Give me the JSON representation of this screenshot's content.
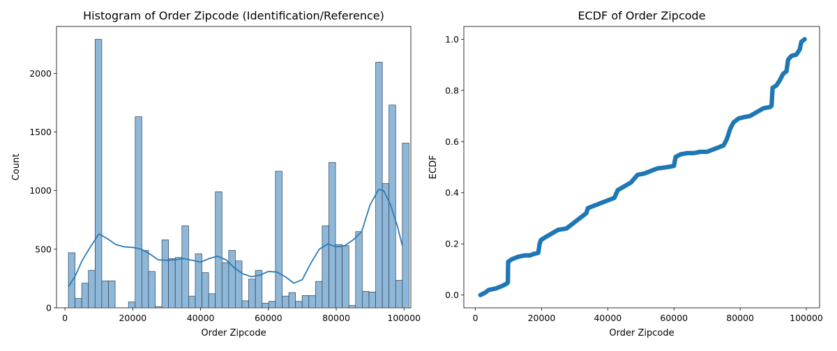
{
  "chart_data": [
    {
      "type": "bar",
      "title": "Histogram of Order Zipcode (Identification/Reference)",
      "xlabel": "Order Zipcode",
      "ylabel": "Count",
      "xlim": [
        -2500,
        102000
      ],
      "ylim": [
        0,
        2400
      ],
      "x_ticks": [
        0,
        20000,
        40000,
        60000,
        80000,
        100000
      ],
      "y_ticks": [
        0,
        500,
        1000,
        1500,
        2000
      ],
      "bin_start": 1000,
      "bin_width": 1970,
      "bar_color": "#8fb8d8",
      "bar_edge": "#2a3f55",
      "kde_color": "#2a7ab7",
      "values": [
        470,
        80,
        210,
        320,
        2290,
        230,
        230,
        0,
        0,
        50,
        1630,
        490,
        310,
        10,
        580,
        420,
        430,
        700,
        100,
        460,
        300,
        120,
        990,
        385,
        490,
        400,
        60,
        245,
        320,
        40,
        55,
        1165,
        100,
        130,
        55,
        105,
        105,
        225,
        700,
        1240,
        540,
        530,
        20,
        650,
        140,
        135,
        2095,
        1060,
        1730,
        235,
        1405
      ],
      "kde": [
        [
          1000,
          180
        ],
        [
          3000,
          270
        ],
        [
          5000,
          400
        ],
        [
          7500,
          520
        ],
        [
          10000,
          630
        ],
        [
          12500,
          590
        ],
        [
          15000,
          540
        ],
        [
          17500,
          520
        ],
        [
          20000,
          515
        ],
        [
          22500,
          500
        ],
        [
          25000,
          460
        ],
        [
          27500,
          410
        ],
        [
          30000,
          405
        ],
        [
          32500,
          410
        ],
        [
          35000,
          420
        ],
        [
          37500,
          405
        ],
        [
          40000,
          390
        ],
        [
          42500,
          420
        ],
        [
          45000,
          440
        ],
        [
          47500,
          410
        ],
        [
          50000,
          340
        ],
        [
          52500,
          290
        ],
        [
          55000,
          265
        ],
        [
          57500,
          280
        ],
        [
          60000,
          310
        ],
        [
          62500,
          305
        ],
        [
          65000,
          265
        ],
        [
          67500,
          210
        ],
        [
          70000,
          240
        ],
        [
          72500,
          380
        ],
        [
          75000,
          500
        ],
        [
          77500,
          545
        ],
        [
          80000,
          520
        ],
        [
          82500,
          530
        ],
        [
          85000,
          580
        ],
        [
          87500,
          650
        ],
        [
          90000,
          880
        ],
        [
          92500,
          1010
        ],
        [
          94000,
          1000
        ],
        [
          96000,
          880
        ],
        [
          98000,
          700
        ],
        [
          99500,
          530
        ]
      ]
    },
    {
      "type": "scatter",
      "title": "ECDF of Order Zipcode",
      "xlabel": "Order Zipcode",
      "ylabel": "ECDF",
      "xlim": [
        -3500,
        104000
      ],
      "ylim": [
        -0.05,
        1.05
      ],
      "x_ticks": [
        0,
        20000,
        40000,
        60000,
        80000,
        100000
      ],
      "y_ticks": [
        0.0,
        0.2,
        0.4,
        0.6,
        0.8,
        1.0
      ],
      "y_tick_labels": [
        "0.0",
        "0.2",
        "0.4",
        "0.6",
        "0.8",
        "1.0"
      ],
      "point_color": "#1f77b4",
      "points": [
        [
          1500,
          0.0
        ],
        [
          3000,
          0.01
        ],
        [
          4000,
          0.02
        ],
        [
          6000,
          0.025
        ],
        [
          8000,
          0.035
        ],
        [
          9500,
          0.045
        ],
        [
          9800,
          0.05
        ],
        [
          9900,
          0.13
        ],
        [
          11000,
          0.14
        ],
        [
          13000,
          0.15
        ],
        [
          15000,
          0.155
        ],
        [
          16500,
          0.155
        ],
        [
          17500,
          0.16
        ],
        [
          19000,
          0.165
        ],
        [
          19400,
          0.2
        ],
        [
          19800,
          0.215
        ],
        [
          21000,
          0.225
        ],
        [
          23000,
          0.24
        ],
        [
          25000,
          0.255
        ],
        [
          27500,
          0.26
        ],
        [
          30000,
          0.285
        ],
        [
          32000,
          0.305
        ],
        [
          33500,
          0.32
        ],
        [
          34000,
          0.34
        ],
        [
          36000,
          0.35
        ],
        [
          38000,
          0.36
        ],
        [
          40000,
          0.37
        ],
        [
          42000,
          0.38
        ],
        [
          43000,
          0.41
        ],
        [
          45000,
          0.425
        ],
        [
          47000,
          0.44
        ],
        [
          48000,
          0.455
        ],
        [
          49000,
          0.47
        ],
        [
          51000,
          0.475
        ],
        [
          53000,
          0.485
        ],
        [
          55000,
          0.495
        ],
        [
          58000,
          0.5
        ],
        [
          60000,
          0.505
        ],
        [
          60500,
          0.54
        ],
        [
          62000,
          0.55
        ],
        [
          64000,
          0.555
        ],
        [
          66000,
          0.555
        ],
        [
          68000,
          0.56
        ],
        [
          70000,
          0.56
        ],
        [
          72000,
          0.57
        ],
        [
          74000,
          0.58
        ],
        [
          75000,
          0.585
        ],
        [
          76000,
          0.61
        ],
        [
          77000,
          0.65
        ],
        [
          78000,
          0.675
        ],
        [
          79500,
          0.69
        ],
        [
          81000,
          0.695
        ],
        [
          83000,
          0.7
        ],
        [
          85000,
          0.715
        ],
        [
          87000,
          0.73
        ],
        [
          89000,
          0.735
        ],
        [
          89500,
          0.74
        ],
        [
          89800,
          0.81
        ],
        [
          91000,
          0.82
        ],
        [
          92000,
          0.84
        ],
        [
          93000,
          0.865
        ],
        [
          94000,
          0.875
        ],
        [
          94500,
          0.92
        ],
        [
          95500,
          0.935
        ],
        [
          97000,
          0.94
        ],
        [
          98000,
          0.96
        ],
        [
          98500,
          0.99
        ],
        [
          99500,
          1.0
        ]
      ]
    }
  ]
}
